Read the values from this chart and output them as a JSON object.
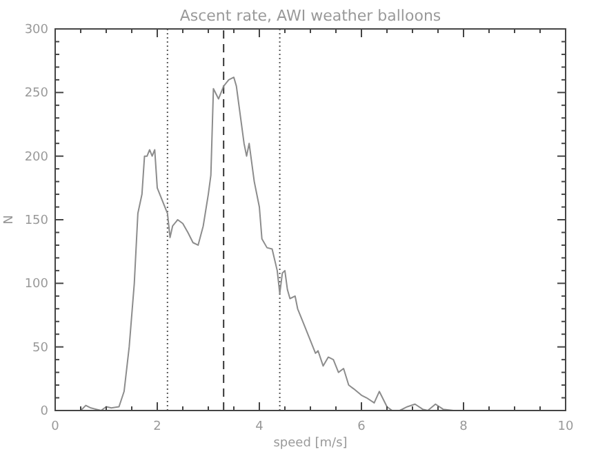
{
  "chart_data": {
    "type": "line",
    "title": "Ascent rate, AWI weather balloons",
    "xlabel": "speed [m/s]",
    "ylabel": "N",
    "xlim": [
      0,
      10
    ],
    "ylim": [
      0,
      300
    ],
    "xticks": [
      0,
      {
        "value": 0.5,
        "label": null
      },
      {
        "value": 1,
        "label": null
      },
      {
        "value": 1.5,
        "label": null
      },
      2,
      {
        "value": 2.5,
        "label": null
      },
      {
        "value": 3,
        "label": null
      },
      {
        "value": 3.5,
        "label": null
      },
      4,
      {
        "value": 4.5,
        "label": null
      },
      {
        "value": 5,
        "label": null
      },
      {
        "value": 5.5,
        "label": null
      },
      6,
      {
        "value": 6.5,
        "label": null
      },
      {
        "value": 7,
        "label": null
      },
      {
        "value": 7.5,
        "label": null
      },
      8,
      {
        "value": 8.5,
        "label": null
      },
      {
        "value": 9,
        "label": null
      },
      {
        "value": 9.5,
        "label": null
      },
      10
    ],
    "yticks": [
      0,
      {
        "value": 10,
        "label": null
      },
      {
        "value": 20,
        "label": null
      },
      {
        "value": 30,
        "label": null
      },
      {
        "value": 40,
        "label": null
      },
      50,
      {
        "value": 60,
        "label": null
      },
      {
        "value": 70,
        "label": null
      },
      {
        "value": 80,
        "label": null
      },
      {
        "value": 90,
        "label": null
      },
      100,
      {
        "value": 110,
        "label": null
      },
      {
        "value": 120,
        "label": null
      },
      {
        "value": 130,
        "label": null
      },
      {
        "value": 140,
        "label": null
      },
      150,
      {
        "value": 160,
        "label": null
      },
      {
        "value": 170,
        "label": null
      },
      {
        "value": 180,
        "label": null
      },
      {
        "value": 190,
        "label": null
      },
      200,
      {
        "value": 210,
        "label": null
      },
      {
        "value": 220,
        "label": null
      },
      {
        "value": 230,
        "label": null
      },
      {
        "value": 240,
        "label": null
      },
      250,
      {
        "value": 260,
        "label": null
      },
      {
        "value": 270,
        "label": null
      },
      {
        "value": 280,
        "label": null
      },
      {
        "value": 290,
        "label": null
      },
      300
    ],
    "grid": false,
    "marker": "none",
    "line_style": "solid",
    "series": [
      {
        "color": "#8c8c8c",
        "x": [
          0.5,
          0.6,
          0.7,
          0.8,
          0.9,
          1.0,
          1.1,
          1.25,
          1.35,
          1.45,
          1.55,
          1.62,
          1.7,
          1.75,
          1.8,
          1.85,
          1.9,
          1.95,
          2.0,
          2.1,
          2.2,
          2.25,
          2.3,
          2.4,
          2.5,
          2.6,
          2.7,
          2.8,
          2.9,
          3.0,
          3.05,
          3.1,
          3.2,
          3.3,
          3.4,
          3.5,
          3.55,
          3.6,
          3.7,
          3.75,
          3.8,
          3.9,
          3.95,
          4.0,
          4.05,
          4.15,
          4.25,
          4.35,
          4.4,
          4.45,
          4.5,
          4.55,
          4.6,
          4.7,
          4.75,
          4.85,
          5.0,
          5.1,
          5.15,
          5.25,
          5.35,
          5.45,
          5.55,
          5.65,
          5.75,
          5.85,
          6.0,
          6.1,
          6.25,
          6.35,
          6.5,
          6.6,
          6.75,
          6.9,
          7.05,
          7.2,
          7.3,
          7.45,
          7.6,
          7.8
        ],
        "values": [
          0,
          4,
          2,
          1,
          0,
          3,
          2,
          3,
          15,
          50,
          100,
          155,
          170,
          200,
          200,
          205,
          200,
          205,
          175,
          165,
          155,
          136,
          145,
          150,
          147,
          140,
          132,
          130,
          145,
          170,
          185,
          253,
          245,
          255,
          260,
          262,
          255,
          240,
          210,
          200,
          210,
          180,
          170,
          160,
          135,
          128,
          127,
          110,
          92,
          108,
          110,
          95,
          88,
          90,
          80,
          70,
          55,
          45,
          47,
          35,
          42,
          40,
          30,
          33,
          20,
          17,
          12,
          10,
          6,
          15,
          3,
          0,
          0,
          3,
          5,
          1,
          0,
          5,
          1,
          0
        ]
      }
    ],
    "ref_lines": [
      {
        "axis": "x",
        "value": 2.2,
        "line_style": "dotted",
        "color": "#555555"
      },
      {
        "axis": "x",
        "value": 3.3,
        "line_style": "dashed",
        "color": "#333333"
      },
      {
        "axis": "x",
        "value": 4.4,
        "line_style": "dotted",
        "color": "#555555"
      }
    ]
  }
}
